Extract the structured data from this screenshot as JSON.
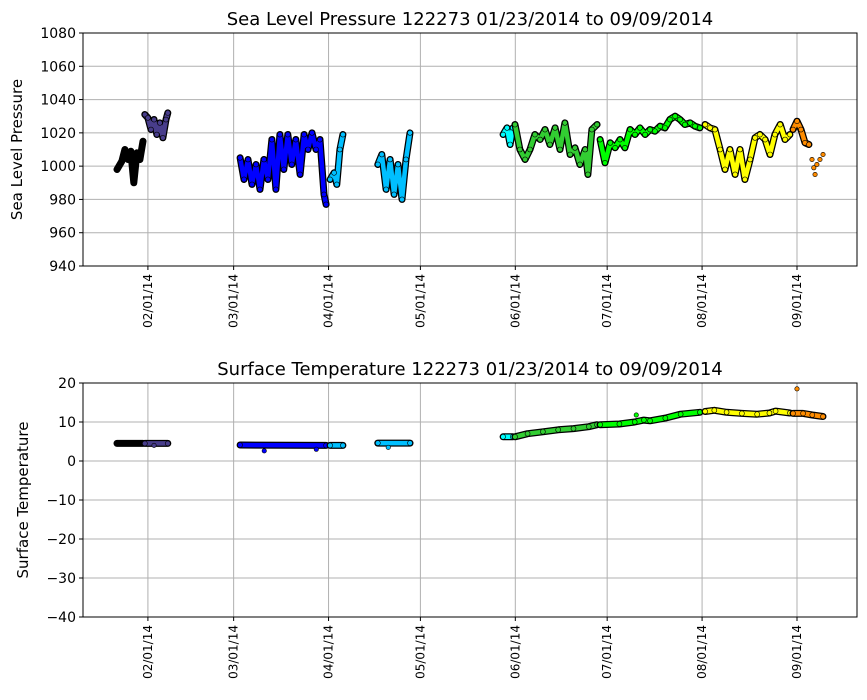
{
  "chart_data": [
    {
      "type": "scatter",
      "title": "Sea Level Pressure 122273  01/23/2014 to 09/09/2014",
      "xlabel": "",
      "ylabel": "Sea Level Pressure",
      "ylim": [
        940,
        1080
      ],
      "yticks": [
        940,
        960,
        980,
        1000,
        1020,
        1040,
        1060,
        1080
      ],
      "xlim_day_of_year": [
        9.8,
        262.6
      ],
      "xticks": [
        {
          "day": 31,
          "label": "02/01/14"
        },
        {
          "day": 59,
          "label": "03/01/14"
        },
        {
          "day": 90,
          "label": "04/01/14"
        },
        {
          "day": 120,
          "label": "05/01/14"
        },
        {
          "day": 151,
          "label": "06/01/14"
        },
        {
          "day": 181,
          "label": "07/01/14"
        },
        {
          "day": 212,
          "label": "08/01/14"
        },
        {
          "day": 243,
          "label": "09/01/14"
        }
      ],
      "grid": true,
      "series": [
        {
          "color": "#000000",
          "points": [
            [
              20.9,
              998
            ],
            [
              22.5,
              1003
            ],
            [
              23.5,
              1010
            ],
            [
              24.5,
              1004
            ],
            [
              25.4,
              1009
            ],
            [
              26.4,
              990
            ],
            [
              27.4,
              1008
            ],
            [
              28.4,
              1004
            ],
            [
              29.4,
              1015
            ]
          ]
        },
        {
          "color": "#483d8b",
          "points": [
            [
              30,
              1031
            ],
            [
              31,
              1029
            ],
            [
              32,
              1022
            ],
            [
              33,
              1028
            ],
            [
              33.9,
              1019
            ],
            [
              34.9,
              1026
            ],
            [
              35.9,
              1017
            ],
            [
              36.9,
              1028
            ],
            [
              37.5,
              1032
            ]
          ]
        },
        {
          "color": "#0000ff",
          "points": [
            [
              61.1,
              1005
            ],
            [
              62.4,
              992
            ],
            [
              63.7,
              1004
            ],
            [
              65,
              989
            ],
            [
              66.3,
              1001
            ],
            [
              67.6,
              986
            ],
            [
              68.9,
              1004
            ],
            [
              70.2,
              992
            ],
            [
              71.5,
              1016
            ],
            [
              72.8,
              986
            ],
            [
              74.1,
              1019
            ],
            [
              75.4,
              998
            ],
            [
              76.7,
              1019
            ],
            [
              78,
              1001
            ],
            [
              79.3,
              1016
            ],
            [
              80.7,
              995
            ],
            [
              82,
              1019
            ],
            [
              83.3,
              1010
            ],
            [
              84.6,
              1020
            ],
            [
              85.9,
              1010
            ],
            [
              87.2,
              1016
            ],
            [
              88.5,
              983
            ],
            [
              89.2,
              977
            ]
          ]
        },
        {
          "color": "#00bfff",
          "points": [
            [
              90.5,
              992
            ],
            [
              91.8,
              996
            ],
            [
              92.7,
              989
            ],
            [
              93.7,
              1010
            ],
            [
              94.7,
              1019
            ]
          ]
        },
        {
          "color": "#00bfff",
          "points": [
            [
              106.1,
              1001
            ],
            [
              107.4,
              1007
            ],
            [
              108.8,
              986
            ],
            [
              110.1,
              1004
            ],
            [
              111.4,
              983
            ],
            [
              112.7,
              1001
            ],
            [
              114,
              980
            ],
            [
              115.3,
              1004
            ],
            [
              116.6,
              1020
            ]
          ]
        },
        {
          "color": "#00ffff",
          "points": [
            [
              147,
              1019
            ],
            [
              148.3,
              1023
            ],
            [
              149.3,
              1013
            ],
            [
              150.2,
              1023
            ]
          ]
        },
        {
          "color": "#32cd32",
          "points": [
            [
              150.9,
              1025
            ],
            [
              152.5,
              1010
            ],
            [
              154.2,
              1004
            ],
            [
              155.8,
              1010
            ],
            [
              157.4,
              1019
            ],
            [
              159.1,
              1016
            ],
            [
              160.7,
              1022
            ],
            [
              162.3,
              1013
            ],
            [
              164,
              1023
            ],
            [
              165.6,
              1010
            ],
            [
              167.2,
              1026
            ],
            [
              168.9,
              1007
            ],
            [
              170.5,
              1011
            ],
            [
              172.1,
              1001
            ],
            [
              173.8,
              1010
            ],
            [
              174.7,
              995
            ],
            [
              176,
              1022
            ],
            [
              177.7,
              1025
            ]
          ]
        },
        {
          "color": "#00ff00",
          "points": [
            [
              178.7,
              1016
            ],
            [
              180.3,
              1002
            ],
            [
              182,
              1014
            ],
            [
              183.6,
              1011
            ],
            [
              185.2,
              1016
            ],
            [
              186.8,
              1011
            ],
            [
              188.5,
              1022
            ],
            [
              190.1,
              1019
            ],
            [
              191.7,
              1023
            ],
            [
              193.4,
              1019
            ],
            [
              195,
              1022
            ],
            [
              196.6,
              1021
            ],
            [
              198.3,
              1024
            ],
            [
              199.9,
              1023
            ],
            [
              201.5,
              1028
            ],
            [
              203.2,
              1030
            ],
            [
              204.8,
              1028
            ],
            [
              206.4,
              1025
            ],
            [
              208.1,
              1026
            ],
            [
              209.7,
              1024
            ],
            [
              211.3,
              1023
            ]
          ]
        },
        {
          "color": "#ffff00",
          "points": [
            [
              213,
              1025
            ],
            [
              214.6,
              1023
            ],
            [
              216.2,
              1022
            ],
            [
              217.9,
              1010
            ],
            [
              219.5,
              998
            ],
            [
              221.1,
              1010
            ],
            [
              222.8,
              995
            ],
            [
              224.4,
              1010
            ],
            [
              226,
              992
            ],
            [
              227.7,
              1004
            ],
            [
              229.3,
              1017
            ],
            [
              230.9,
              1019
            ],
            [
              232.6,
              1016
            ],
            [
              234.2,
              1007
            ],
            [
              235.8,
              1019
            ],
            [
              237.5,
              1025
            ],
            [
              239.1,
              1016
            ],
            [
              240.7,
              1019
            ]
          ]
        },
        {
          "color": "#ff8c00",
          "points": [
            [
              241.7,
              1022
            ],
            [
              243,
              1027
            ],
            [
              244.3,
              1022
            ],
            [
              245.6,
              1014
            ],
            [
              246.9,
              1013
            ]
          ],
          "scatter": [
            [
              247.9,
              1004
            ],
            [
              248.5,
              999
            ],
            [
              248.9,
              995
            ],
            [
              249.5,
              1001
            ],
            [
              250.5,
              1004
            ],
            [
              251.5,
              1007
            ]
          ]
        }
      ]
    },
    {
      "type": "scatter",
      "title": "Surface Temperature 122273  01/23/2014 to 09/09/2014",
      "xlabel": "",
      "ylabel": "Surface Temperature",
      "ylim": [
        -40,
        20
      ],
      "yticks": [
        -40,
        -30,
        -20,
        -10,
        0,
        10,
        20
      ],
      "xlim_day_of_year": [
        9.8,
        262.6
      ],
      "xticks": [
        {
          "day": 31,
          "label": "02/01/14"
        },
        {
          "day": 59,
          "label": "03/01/14"
        },
        {
          "day": 90,
          "label": "04/01/14"
        },
        {
          "day": 120,
          "label": "05/01/14"
        },
        {
          "day": 151,
          "label": "06/01/14"
        },
        {
          "day": 181,
          "label": "07/01/14"
        },
        {
          "day": 212,
          "label": "08/01/14"
        },
        {
          "day": 243,
          "label": "09/01/14"
        }
      ],
      "grid": true,
      "series": [
        {
          "color": "#000000",
          "points": [
            [
              20.9,
              4.5
            ],
            [
              29.4,
              4.5
            ]
          ]
        },
        {
          "color": "#483d8b",
          "points": [
            [
              30,
              4.5
            ],
            [
              37.5,
              4.5
            ]
          ],
          "scatter": [
            [
              33,
              4.0
            ]
          ]
        },
        {
          "color": "#0000ff",
          "points": [
            [
              61.1,
              4.1
            ],
            [
              89.2,
              4.0
            ]
          ],
          "scatter": [
            [
              69,
              2.6
            ],
            [
              86,
              3.0
            ]
          ]
        },
        {
          "color": "#00bfff",
          "points": [
            [
              90.5,
              4.0
            ],
            [
              94.7,
              4.0
            ]
          ]
        },
        {
          "color": "#00bfff",
          "points": [
            [
              106.1,
              4.6
            ],
            [
              116.6,
              4.6
            ]
          ],
          "scatter": [
            [
              109.5,
              3.5
            ]
          ]
        },
        {
          "color": "#00ffff",
          "points": [
            [
              147,
              6.2
            ],
            [
              150.2,
              6.2
            ]
          ]
        },
        {
          "color": "#32cd32",
          "points": [
            [
              150.9,
              6.2
            ],
            [
              155,
              7
            ],
            [
              160,
              7.5
            ],
            [
              165,
              8
            ],
            [
              170,
              8.3
            ],
            [
              175,
              8.8
            ],
            [
              177.7,
              9.3
            ]
          ]
        },
        {
          "color": "#00ff00",
          "points": [
            [
              178.7,
              9.3
            ],
            [
              185,
              9.5
            ],
            [
              190,
              10
            ],
            [
              193,
              10.5
            ],
            [
              195,
              10.3
            ],
            [
              200,
              11
            ],
            [
              205,
              12
            ],
            [
              211.3,
              12.5
            ]
          ],
          "scatter": [
            [
              190.5,
              11.8
            ]
          ]
        },
        {
          "color": "#ffff00",
          "points": [
            [
              213,
              12.7
            ],
            [
              216,
              13
            ],
            [
              220,
              12.5
            ],
            [
              225,
              12.2
            ],
            [
              230,
              12
            ],
            [
              234,
              12.3
            ],
            [
              236,
              12.8
            ],
            [
              240.7,
              12.3
            ]
          ]
        },
        {
          "color": "#ff8c00",
          "points": [
            [
              241.7,
              12.2
            ],
            [
              245,
              12.2
            ],
            [
              248,
              11.8
            ],
            [
              251.5,
              11.4
            ]
          ],
          "scatter": [
            [
              243,
              18.5
            ]
          ]
        }
      ]
    }
  ]
}
